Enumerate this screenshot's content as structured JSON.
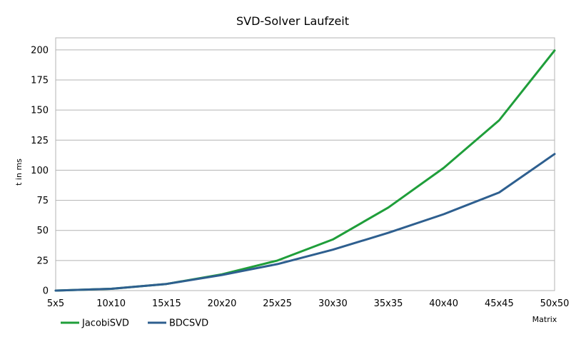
{
  "chart_data": {
    "type": "line",
    "title": "SVD-Solver Laufzeit",
    "xlabel": "Matrix",
    "ylabel": "t in ms",
    "categories": [
      "5x5",
      "10x10",
      "15x15",
      "20x20",
      "25x25",
      "30x30",
      "35x35",
      "40x40",
      "45x45",
      "50x50"
    ],
    "ylim": [
      0,
      210
    ],
    "yticks": [
      0,
      25,
      50,
      75,
      100,
      125,
      150,
      175,
      200
    ],
    "grid": true,
    "legend_position": "bottom-left",
    "series": [
      {
        "name": "JacobiSVD",
        "color": "#1f9e3a",
        "values": [
          0,
          1.5,
          5.5,
          13.5,
          25,
          42.5,
          69,
          102,
          141.5,
          199.5
        ]
      },
      {
        "name": "BDCSVD",
        "color": "#2e5f8f",
        "values": [
          0,
          1.5,
          5.5,
          13,
          22,
          34,
          48,
          63.5,
          81.5,
          113.5
        ]
      }
    ]
  }
}
